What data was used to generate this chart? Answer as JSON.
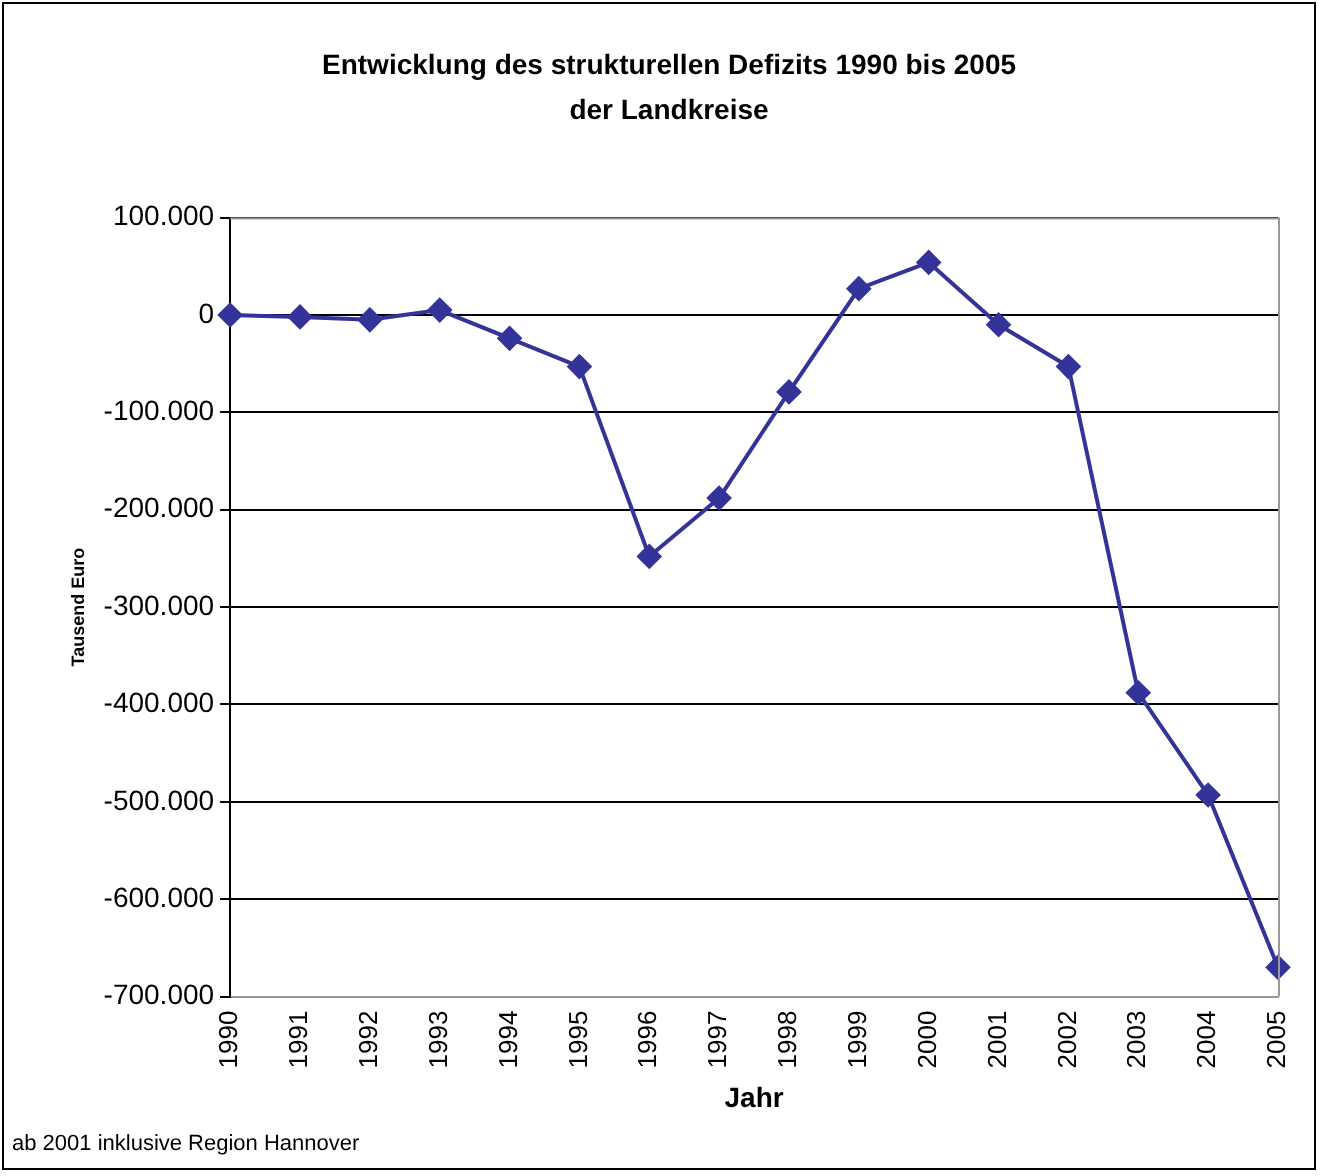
{
  "chart_data": {
    "type": "line",
    "title": "Entwicklung des strukturellen Defizits 1990 bis 2005\nder Landkreise",
    "xlabel": "Jahr",
    "ylabel": "Tausend Euro",
    "categories": [
      "1990",
      "1991",
      "1992",
      "1993",
      "1994",
      "1995",
      "1996",
      "1997",
      "1998",
      "1999",
      "2000",
      "2001",
      "2002",
      "2003",
      "2004",
      "2005"
    ],
    "series": [
      {
        "color": "#333399",
        "values": [
          0,
          -2000,
          -5000,
          5000,
          -24000,
          -53000,
          -248000,
          -188000,
          -79000,
          27000,
          54000,
          -10000,
          -53000,
          -388000,
          -493000,
          -670000
        ]
      }
    ],
    "ylim": [
      -700000,
      100000
    ],
    "yticks": [
      {
        "value": -700000,
        "label": "-700.000"
      },
      {
        "value": -600000,
        "label": "-600.000"
      },
      {
        "value": -500000,
        "label": "-500.000"
      },
      {
        "value": -400000,
        "label": "-400.000"
      },
      {
        "value": -300000,
        "label": "-300.000"
      },
      {
        "value": -200000,
        "label": "-200.000"
      },
      {
        "value": -100000,
        "label": "-100.000"
      },
      {
        "value": 0,
        "label": "0"
      },
      {
        "value": 100000,
        "label": "100.000"
      }
    ],
    "grid": "y",
    "legend": false,
    "marker": "diamond",
    "line_style": "solid",
    "annotations": [
      "ab 2001 inklusive Region Hannover"
    ]
  }
}
